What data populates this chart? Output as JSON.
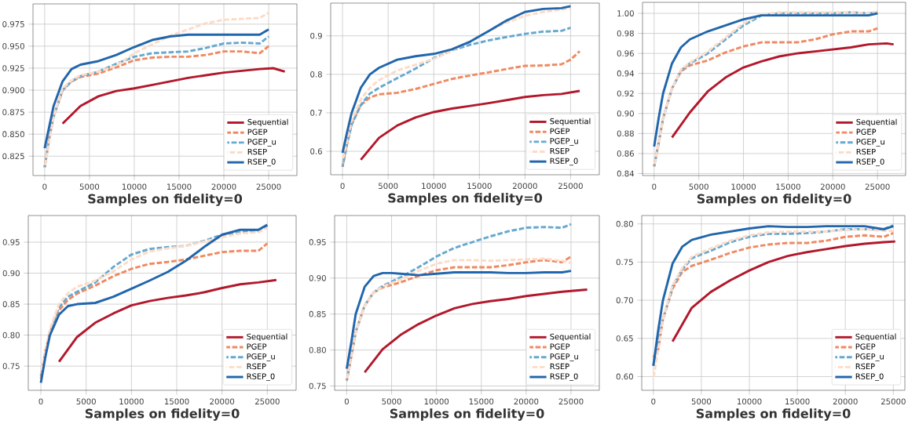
{
  "chart_data": [
    {
      "type": "line",
      "xlabel": "Samples on fidelity=0",
      "grid": true,
      "legend": "bottom right",
      "xlim": [
        -1300,
        28150
      ],
      "xticks": [
        0,
        5000,
        10000,
        15000,
        20000,
        25000
      ],
      "ylim": [
        0.803,
        0.998
      ],
      "yticks": [
        {
          "value": 0.825,
          "label": "0.825"
        },
        {
          "value": 0.85,
          "label": "0.850"
        },
        {
          "value": 0.875,
          "label": "0.875"
        },
        {
          "value": 0.9,
          "label": "0.900"
        },
        {
          "value": 0.925,
          "label": "0.925"
        },
        {
          "value": 0.95,
          "label": "0.950"
        },
        {
          "value": 0.975,
          "label": "0.975"
        }
      ],
      "series": [
        {
          "name": "Sequential",
          "color": "#b2182b",
          "line_style": "solid",
          "x": [
            2000,
            4000,
            6000,
            8000,
            10000,
            12000,
            14000,
            16000,
            18000,
            20000,
            22000,
            24000,
            25500,
            26800
          ],
          "values": [
            0.862,
            0.882,
            0.893,
            0.899,
            0.902,
            0.906,
            0.91,
            0.914,
            0.917,
            0.92,
            0.922,
            0.924,
            0.925,
            0.921
          ]
        },
        {
          "name": "PGEP",
          "color": "#ef8a62",
          "line_style": "dashed",
          "x": [
            0,
            500,
            1000,
            2000,
            3000,
            4000,
            6000,
            8000,
            10000,
            12000,
            14000,
            16000,
            18000,
            20000,
            22000,
            24000,
            25000
          ],
          "values": [
            0.812,
            0.845,
            0.87,
            0.9,
            0.91,
            0.915,
            0.919,
            0.926,
            0.934,
            0.937,
            0.938,
            0.938,
            0.94,
            0.944,
            0.944,
            0.942,
            0.95
          ]
        },
        {
          "name": "PGEP_u",
          "color": "#67a9cf",
          "line_style": "dashed",
          "x": [
            0,
            500,
            1000,
            2000,
            3000,
            4000,
            6000,
            8000,
            10000,
            12000,
            14000,
            16000,
            18000,
            20000,
            22000,
            24000,
            25000
          ],
          "values": [
            0.812,
            0.845,
            0.87,
            0.9,
            0.91,
            0.916,
            0.921,
            0.93,
            0.938,
            0.942,
            0.943,
            0.944,
            0.948,
            0.953,
            0.954,
            0.953,
            0.961
          ]
        },
        {
          "name": "RSEP",
          "color": "#fddbc7",
          "line_style": "dashed",
          "x": [
            0,
            1000,
            2000,
            3000,
            4000,
            6000,
            8000,
            10000,
            12000,
            14000,
            16000,
            18000,
            20000,
            22000,
            24000,
            25000
          ],
          "values": [
            0.812,
            0.87,
            0.902,
            0.911,
            0.917,
            0.921,
            0.928,
            0.942,
            0.952,
            0.962,
            0.969,
            0.976,
            0.98,
            0.981,
            0.982,
            0.988
          ]
        },
        {
          "name": "RSEP_0",
          "color": "#2166ac",
          "line_style": "solid",
          "x": [
            0,
            500,
            1000,
            2000,
            3000,
            4000,
            6000,
            8000,
            10000,
            12000,
            14000,
            16000,
            18000,
            20000,
            22000,
            24000,
            25000
          ],
          "values": [
            0.834,
            0.858,
            0.882,
            0.91,
            0.924,
            0.929,
            0.933,
            0.94,
            0.949,
            0.957,
            0.961,
            0.963,
            0.963,
            0.963,
            0.963,
            0.963,
            0.969
          ]
        }
      ]
    },
    {
      "type": "line",
      "xlabel": "Samples on fidelity=0",
      "grid": true,
      "legend": "bottom right",
      "xlim": [
        -1300,
        28150
      ],
      "xticks": [
        0,
        5000,
        10000,
        15000,
        20000,
        25000
      ],
      "ylim": [
        0.539,
        0.985
      ],
      "yticks": [
        {
          "value": 0.6,
          "label": "0.6"
        },
        {
          "value": 0.7,
          "label": "0.7"
        },
        {
          "value": 0.8,
          "label": "0.8"
        },
        {
          "value": 0.9,
          "label": "0.9"
        }
      ],
      "series": [
        {
          "name": "Sequential",
          "color": "#b2182b",
          "line_style": "solid",
          "x": [
            2000,
            4000,
            6000,
            8000,
            10000,
            12000,
            14000,
            16000,
            18000,
            20000,
            22000,
            24000,
            26000
          ],
          "values": [
            0.578,
            0.635,
            0.667,
            0.688,
            0.702,
            0.711,
            0.718,
            0.725,
            0.733,
            0.741,
            0.746,
            0.749,
            0.757
          ]
        },
        {
          "name": "PGEP",
          "color": "#ef8a62",
          "line_style": "dashed",
          "x": [
            0,
            500,
            1000,
            2000,
            3000,
            4000,
            6000,
            8000,
            10000,
            12000,
            14000,
            16000,
            18000,
            20000,
            22000,
            24000,
            25000,
            26000
          ],
          "values": [
            0.56,
            0.62,
            0.67,
            0.72,
            0.74,
            0.748,
            0.752,
            0.762,
            0.775,
            0.788,
            0.797,
            0.805,
            0.814,
            0.822,
            0.823,
            0.826,
            0.838,
            0.86
          ]
        },
        {
          "name": "PGEP_u",
          "color": "#67a9cf",
          "line_style": "dashed",
          "x": [
            0,
            500,
            1000,
            2000,
            3000,
            4000,
            6000,
            8000,
            10000,
            12000,
            14000,
            16000,
            18000,
            20000,
            22000,
            24000,
            25000
          ],
          "values": [
            0.56,
            0.62,
            0.67,
            0.72,
            0.75,
            0.765,
            0.79,
            0.815,
            0.842,
            0.862,
            0.877,
            0.888,
            0.897,
            0.905,
            0.911,
            0.913,
            0.921
          ]
        },
        {
          "name": "RSEP",
          "color": "#fddbc7",
          "line_style": "dashed",
          "x": [
            0,
            1000,
            2000,
            3000,
            4000,
            6000,
            8000,
            10000,
            12000,
            14000,
            16000,
            18000,
            20000,
            22000,
            24000,
            25000
          ],
          "values": [
            0.575,
            0.68,
            0.735,
            0.765,
            0.785,
            0.81,
            0.825,
            0.84,
            0.862,
            0.885,
            0.912,
            0.935,
            0.952,
            0.962,
            0.968,
            0.972
          ]
        },
        {
          "name": "RSEP_0",
          "color": "#2166ac",
          "line_style": "solid",
          "x": [
            0,
            500,
            1000,
            2000,
            3000,
            4000,
            6000,
            8000,
            10000,
            12000,
            14000,
            16000,
            18000,
            20000,
            22000,
            24000,
            25000
          ],
          "values": [
            0.596,
            0.65,
            0.7,
            0.765,
            0.8,
            0.817,
            0.838,
            0.847,
            0.853,
            0.865,
            0.885,
            0.912,
            0.94,
            0.962,
            0.97,
            0.972,
            0.977
          ]
        }
      ]
    },
    {
      "type": "line",
      "xlabel": "Samples on fidelity=0",
      "grid": true,
      "legend": "bottom right",
      "xlim": [
        -1300,
        28150
      ],
      "xticks": [
        0,
        5000,
        10000,
        15000,
        20000,
        25000
      ],
      "ylim": [
        0.838,
        1.011
      ],
      "yticks": [
        {
          "value": 0.84,
          "label": "0.84"
        },
        {
          "value": 0.86,
          "label": "0.86"
        },
        {
          "value": 0.88,
          "label": "0.88"
        },
        {
          "value": 0.9,
          "label": "0.90"
        },
        {
          "value": 0.92,
          "label": "0.92"
        },
        {
          "value": 0.94,
          "label": "0.94"
        },
        {
          "value": 0.96,
          "label": "0.96"
        },
        {
          "value": 0.98,
          "label": "0.98"
        },
        {
          "value": 1.0,
          "label": "1.00"
        }
      ],
      "series": [
        {
          "name": "Sequential",
          "color": "#b2182b",
          "line_style": "solid",
          "x": [
            2000,
            4000,
            6000,
            8000,
            10000,
            12000,
            14000,
            16000,
            18000,
            20000,
            22000,
            24000,
            26000,
            26800
          ],
          "values": [
            0.876,
            0.901,
            0.922,
            0.936,
            0.946,
            0.952,
            0.957,
            0.96,
            0.962,
            0.964,
            0.966,
            0.969,
            0.97,
            0.969
          ]
        },
        {
          "name": "PGEP",
          "color": "#ef8a62",
          "line_style": "dashed",
          "x": [
            0,
            500,
            1000,
            2000,
            3000,
            4000,
            6000,
            8000,
            10000,
            12000,
            14000,
            16000,
            18000,
            20000,
            22000,
            24000,
            25000
          ],
          "values": [
            0.847,
            0.87,
            0.895,
            0.925,
            0.942,
            0.948,
            0.953,
            0.961,
            0.967,
            0.971,
            0.971,
            0.971,
            0.974,
            0.979,
            0.982,
            0.982,
            0.985
          ]
        },
        {
          "name": "PGEP_u",
          "color": "#67a9cf",
          "line_style": "dashed",
          "x": [
            0,
            1000,
            2000,
            3000,
            4000,
            6000,
            8000,
            10000,
            12000,
            14000,
            16000,
            18000,
            20000,
            22000,
            24000,
            25000
          ],
          "values": [
            0.847,
            0.895,
            0.925,
            0.943,
            0.95,
            0.96,
            0.974,
            0.988,
            0.998,
            1.0,
            1.0,
            1.0,
            1.0,
            1.001,
            1.0,
            1.001
          ]
        },
        {
          "name": "RSEP",
          "color": "#fddbc7",
          "line_style": "dashed",
          "x": [
            0,
            1000,
            2000,
            3000,
            4000,
            6000,
            8000,
            10000,
            12000,
            14000,
            16000,
            18000,
            20000,
            22000,
            24000,
            25000
          ],
          "values": [
            0.847,
            0.895,
            0.925,
            0.944,
            0.951,
            0.962,
            0.976,
            0.99,
            0.999,
            1.001,
            1.001,
            1.001,
            1.001,
            1.001,
            1.0,
            1.002
          ]
        },
        {
          "name": "RSEP_0",
          "color": "#2166ac",
          "line_style": "solid",
          "x": [
            0,
            500,
            1000,
            2000,
            3000,
            4000,
            6000,
            8000,
            10000,
            12000,
            14000,
            16000,
            18000,
            20000,
            22000,
            24000,
            25000
          ],
          "values": [
            0.867,
            0.895,
            0.92,
            0.95,
            0.966,
            0.974,
            0.982,
            0.988,
            0.994,
            0.998,
            0.998,
            0.998,
            0.998,
            0.998,
            0.998,
            0.998,
            1.0
          ]
        }
      ]
    },
    {
      "type": "line",
      "xlabel": "Samples on fidelity=0",
      "grid": true,
      "legend": "bottom right",
      "xlim": [
        -1390,
        28180
      ],
      "xticks": [
        0,
        5000,
        10000,
        15000,
        20000,
        25000
      ],
      "ylim": [
        0.711,
        0.993
      ],
      "yticks": [
        {
          "value": 0.75,
          "label": "0.75"
        },
        {
          "value": 0.8,
          "label": "0.80"
        },
        {
          "value": 0.85,
          "label": "0.85"
        },
        {
          "value": 0.9,
          "label": "0.90"
        },
        {
          "value": 0.95,
          "label": "0.95"
        }
      ],
      "series": [
        {
          "name": "Sequential",
          "color": "#b2182b",
          "line_style": "solid",
          "x": [
            2000,
            4000,
            6000,
            8000,
            10000,
            12000,
            14000,
            16000,
            18000,
            20000,
            22000,
            24000,
            26000
          ],
          "values": [
            0.757,
            0.797,
            0.82,
            0.835,
            0.848,
            0.855,
            0.86,
            0.864,
            0.869,
            0.876,
            0.882,
            0.885,
            0.889
          ]
        },
        {
          "name": "PGEP",
          "color": "#ef8a62",
          "line_style": "dashed",
          "x": [
            0,
            500,
            1000,
            2000,
            3000,
            4000,
            6000,
            8000,
            10000,
            12000,
            14000,
            16000,
            18000,
            20000,
            22000,
            24000,
            25000
          ],
          "values": [
            0.73,
            0.775,
            0.805,
            0.84,
            0.857,
            0.867,
            0.88,
            0.895,
            0.907,
            0.915,
            0.918,
            0.922,
            0.928,
            0.934,
            0.936,
            0.936,
            0.948
          ]
        },
        {
          "name": "PGEP_u",
          "color": "#67a9cf",
          "line_style": "dashed",
          "x": [
            0,
            1000,
            2000,
            3000,
            4000,
            6000,
            8000,
            10000,
            12000,
            14000,
            16000,
            18000,
            20000,
            22000,
            24000,
            25000
          ],
          "values": [
            0.735,
            0.805,
            0.845,
            0.862,
            0.87,
            0.885,
            0.91,
            0.93,
            0.939,
            0.942,
            0.944,
            0.952,
            0.962,
            0.966,
            0.968,
            0.977
          ]
        },
        {
          "name": "RSEP",
          "color": "#fddbc7",
          "line_style": "dashed",
          "x": [
            0,
            1000,
            2000,
            3000,
            4000,
            6000,
            8000,
            10000,
            12000,
            14000,
            16000,
            18000,
            20000,
            22000,
            24000,
            25000
          ],
          "values": [
            0.738,
            0.81,
            0.85,
            0.868,
            0.878,
            0.888,
            0.903,
            0.922,
            0.935,
            0.94,
            0.944,
            0.951,
            0.958,
            0.964,
            0.966,
            0.973
          ]
        },
        {
          "name": "RSEP_0",
          "color": "#2166ac",
          "line_style": "solid",
          "x": [
            0,
            500,
            1000,
            2000,
            3000,
            4000,
            6000,
            8000,
            10000,
            12000,
            14000,
            16000,
            18000,
            20000,
            22000,
            24000,
            25000
          ],
          "values": [
            0.723,
            0.765,
            0.8,
            0.833,
            0.847,
            0.85,
            0.852,
            0.862,
            0.875,
            0.888,
            0.902,
            0.92,
            0.942,
            0.962,
            0.97,
            0.97,
            0.978
          ]
        }
      ]
    },
    {
      "type": "line",
      "xlabel": "Samples on fidelity=0",
      "grid": true,
      "legend": "bottom right",
      "xlim": [
        -1350,
        28150
      ],
      "xticks": [
        0,
        5000,
        10000,
        15000,
        20000,
        25000
      ],
      "ylim": [
        0.744,
        0.987
      ],
      "yticks": [
        {
          "value": 0.75,
          "label": "0.75"
        },
        {
          "value": 0.8,
          "label": "0.80"
        },
        {
          "value": 0.85,
          "label": "0.85"
        },
        {
          "value": 0.9,
          "label": "0.90"
        },
        {
          "value": 0.95,
          "label": "0.95"
        }
      ],
      "series": [
        {
          "name": "Sequential",
          "color": "#b2182b",
          "line_style": "solid",
          "x": [
            2000,
            4000,
            6000,
            8000,
            10000,
            12000,
            14000,
            16000,
            18000,
            20000,
            22000,
            24000,
            26800
          ],
          "values": [
            0.769,
            0.801,
            0.821,
            0.836,
            0.848,
            0.858,
            0.864,
            0.868,
            0.871,
            0.875,
            0.878,
            0.881,
            0.884
          ]
        },
        {
          "name": "PGEP",
          "color": "#ef8a62",
          "line_style": "dashed",
          "x": [
            0,
            500,
            1000,
            2000,
            3000,
            4000,
            6000,
            8000,
            10000,
            12000,
            14000,
            16000,
            18000,
            20000,
            22000,
            24000,
            25000
          ],
          "values": [
            0.757,
            0.79,
            0.825,
            0.862,
            0.88,
            0.887,
            0.894,
            0.903,
            0.911,
            0.915,
            0.915,
            0.915,
            0.918,
            0.922,
            0.925,
            0.922,
            0.93
          ]
        },
        {
          "name": "PGEP_u",
          "color": "#67a9cf",
          "line_style": "dashed",
          "x": [
            0,
            1000,
            2000,
            3000,
            4000,
            6000,
            8000,
            10000,
            12000,
            14000,
            16000,
            18000,
            20000,
            22000,
            24000,
            25000
          ],
          "values": [
            0.757,
            0.825,
            0.862,
            0.88,
            0.889,
            0.901,
            0.915,
            0.93,
            0.942,
            0.95,
            0.958,
            0.965,
            0.97,
            0.971,
            0.97,
            0.975
          ]
        },
        {
          "name": "RSEP",
          "color": "#fddbc7",
          "line_style": "dashed",
          "x": [
            0,
            1000,
            2000,
            3000,
            4000,
            6000,
            8000,
            10000,
            12000,
            14000,
            16000,
            18000,
            20000,
            22000,
            24000,
            25000
          ],
          "values": [
            0.757,
            0.825,
            0.862,
            0.88,
            0.888,
            0.898,
            0.91,
            0.92,
            0.925,
            0.925,
            0.924,
            0.925,
            0.926,
            0.927,
            0.924,
            0.921
          ]
        },
        {
          "name": "RSEP_0",
          "color": "#2166ac",
          "line_style": "solid",
          "x": [
            0,
            500,
            1000,
            2000,
            3000,
            4000,
            5000,
            6000,
            8000,
            10000,
            12000,
            14000,
            16000,
            18000,
            20000,
            22000,
            24000,
            25000
          ],
          "values": [
            0.774,
            0.81,
            0.85,
            0.888,
            0.903,
            0.907,
            0.907,
            0.906,
            0.904,
            0.906,
            0.908,
            0.908,
            0.908,
            0.907,
            0.907,
            0.908,
            0.908,
            0.91
          ]
        }
      ]
    },
    {
      "type": "line",
      "xlabel": "Samples on fidelity=0",
      "grid": true,
      "legend": "bottom right",
      "xlim": [
        -1210,
        26200
      ],
      "xticks": [
        0,
        5000,
        10000,
        15000,
        20000,
        25000
      ],
      "ylim": [
        0.582,
        0.811
      ],
      "yticks": [
        {
          "value": 0.6,
          "label": "0.60"
        },
        {
          "value": 0.65,
          "label": "0.65"
        },
        {
          "value": 0.7,
          "label": "0.70"
        },
        {
          "value": 0.75,
          "label": "0.75"
        },
        {
          "value": 0.8,
          "label": "0.80"
        }
      ],
      "series": [
        {
          "name": "Sequential",
          "color": "#b2182b",
          "line_style": "solid",
          "x": [
            2000,
            4000,
            6000,
            8000,
            10000,
            12000,
            14000,
            16000,
            18000,
            20000,
            22000,
            24000,
            25200
          ],
          "values": [
            0.646,
            0.69,
            0.711,
            0.726,
            0.739,
            0.75,
            0.758,
            0.763,
            0.767,
            0.771,
            0.774,
            0.776,
            0.777
          ]
        },
        {
          "name": "PGEP",
          "color": "#ef8a62",
          "line_style": "dashed",
          "x": [
            0,
            500,
            1000,
            2000,
            3000,
            4000,
            6000,
            8000,
            10000,
            12000,
            14000,
            16000,
            18000,
            20000,
            22000,
            24000,
            25000
          ],
          "values": [
            0.625,
            0.635,
            0.675,
            0.715,
            0.737,
            0.745,
            0.753,
            0.762,
            0.769,
            0.773,
            0.775,
            0.775,
            0.778,
            0.783,
            0.785,
            0.783,
            0.788
          ]
        },
        {
          "name": "PGEP_u",
          "color": "#67a9cf",
          "line_style": "dashed",
          "x": [
            0,
            1000,
            2000,
            3000,
            4000,
            6000,
            8000,
            10000,
            12000,
            14000,
            16000,
            18000,
            20000,
            22000,
            24000,
            25000
          ],
          "values": [
            0.615,
            0.675,
            0.718,
            0.74,
            0.755,
            0.765,
            0.776,
            0.783,
            0.787,
            0.787,
            0.788,
            0.79,
            0.793,
            0.793,
            0.793,
            0.798
          ]
        },
        {
          "name": "RSEP",
          "color": "#fddbc7",
          "line_style": "dashed",
          "x": [
            0,
            1000,
            2000,
            3000,
            4000,
            6000,
            8000,
            10000,
            12000,
            14000,
            16000,
            18000,
            20000,
            22000,
            24000,
            25000
          ],
          "values": [
            0.596,
            0.675,
            0.72,
            0.742,
            0.757,
            0.768,
            0.778,
            0.785,
            0.789,
            0.79,
            0.79,
            0.79,
            0.792,
            0.793,
            0.791,
            0.791
          ]
        },
        {
          "name": "RSEP_0",
          "color": "#2166ac",
          "line_style": "solid",
          "x": [
            0,
            500,
            1000,
            2000,
            3000,
            4000,
            6000,
            8000,
            10000,
            12000,
            14000,
            16000,
            18000,
            20000,
            22000,
            24000,
            25000
          ],
          "values": [
            0.614,
            0.66,
            0.7,
            0.748,
            0.77,
            0.779,
            0.786,
            0.79,
            0.794,
            0.797,
            0.796,
            0.796,
            0.797,
            0.797,
            0.797,
            0.793,
            0.797
          ]
        }
      ]
    }
  ]
}
